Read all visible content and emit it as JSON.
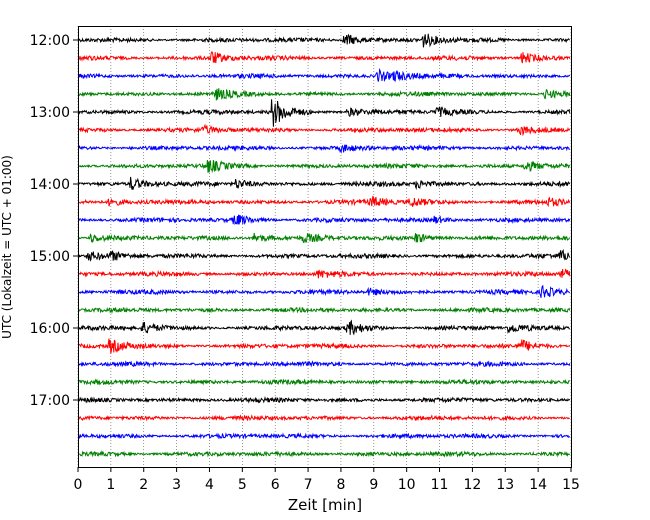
{
  "chart_data": {
    "type": "line",
    "title": "",
    "xlabel": "Zeit  [min]",
    "ylabel": "UTC (Lokalzeit = UTC + 01:00)",
    "xlim": [
      0,
      15
    ],
    "x_ticks": [
      0,
      1,
      2,
      3,
      4,
      5,
      6,
      7,
      8,
      9,
      10,
      11,
      12,
      13,
      14,
      15
    ],
    "x_tick_labels": [
      "0",
      "1",
      "2",
      "3",
      "4",
      "5",
      "6",
      "7",
      "8",
      "9",
      "10",
      "11",
      "12",
      "13",
      "14",
      "15"
    ],
    "y_tick_labels": [
      "12:00",
      "13:00",
      "14:00",
      "15:00",
      "16:00",
      "17:00"
    ],
    "grid": "vertical-dotted",
    "legend": "none",
    "color_cycle": [
      "#000000",
      "#ff0000",
      "#0000ff",
      "#008000"
    ],
    "series": [
      {
        "start": "12:00",
        "events": [
          [
            8.1,
            1.0
          ],
          [
            10.5,
            1.0
          ]
        ]
      },
      {
        "start": "12:15",
        "events": [
          [
            4.05,
            0.9
          ],
          [
            13.5,
            0.8
          ]
        ]
      },
      {
        "start": "12:30",
        "events": [
          [
            9.1,
            0.9
          ],
          [
            9.6,
            0.5
          ]
        ]
      },
      {
        "start": "12:45",
        "events": [
          [
            4.2,
            0.7
          ],
          [
            14.2,
            0.7
          ]
        ]
      },
      {
        "start": "13:00",
        "events": [
          [
            5.9,
            2.2
          ],
          [
            8.2,
            0.6
          ],
          [
            10.9,
            0.7
          ]
        ]
      },
      {
        "start": "13:15",
        "events": [
          [
            3.8,
            0.5
          ],
          [
            13.4,
            0.7
          ]
        ]
      },
      {
        "start": "13:30",
        "events": [
          [
            8.0,
            0.5
          ]
        ]
      },
      {
        "start": "13:45",
        "events": [
          [
            3.95,
            0.8
          ],
          [
            13.6,
            0.8
          ]
        ]
      },
      {
        "start": "14:00",
        "events": [
          [
            1.6,
            0.9
          ],
          [
            4.8,
            0.7
          ],
          [
            10.3,
            0.6
          ]
        ]
      },
      {
        "start": "14:15",
        "events": [
          [
            0.95,
            0.6
          ],
          [
            8.9,
            0.7
          ],
          [
            10.1,
            0.7
          ],
          [
            14.3,
            0.5
          ]
        ]
      },
      {
        "start": "14:30",
        "events": [
          [
            4.75,
            0.8
          ],
          [
            10.8,
            0.5
          ]
        ]
      },
      {
        "start": "14:45",
        "events": [
          [
            0.35,
            0.6
          ],
          [
            5.35,
            0.7
          ],
          [
            6.85,
            0.6
          ],
          [
            10.25,
            0.7
          ]
        ]
      },
      {
        "start": "15:00",
        "events": [
          [
            0.3,
            0.6
          ],
          [
            1.0,
            0.5
          ],
          [
            14.65,
            0.7
          ]
        ]
      },
      {
        "start": "15:15",
        "events": [
          [
            7.3,
            0.5
          ],
          [
            14.65,
            0.7
          ]
        ]
      },
      {
        "start": "15:30",
        "events": [
          [
            8.85,
            0.5
          ],
          [
            14.1,
            0.9
          ]
        ]
      },
      {
        "start": "15:45",
        "events": []
      },
      {
        "start": "16:00",
        "events": [
          [
            1.95,
            0.8
          ],
          [
            8.2,
            1.0
          ],
          [
            13.1,
            0.6
          ]
        ]
      },
      {
        "start": "16:15",
        "events": [
          [
            0.95,
            1.0
          ],
          [
            13.5,
            0.7
          ]
        ]
      },
      {
        "start": "16:30",
        "events": []
      },
      {
        "start": "16:45",
        "events": []
      },
      {
        "start": "17:00",
        "events": []
      },
      {
        "start": "17:15",
        "events": []
      },
      {
        "start": "17:30",
        "events": []
      },
      {
        "start": "17:45",
        "events": []
      }
    ]
  }
}
